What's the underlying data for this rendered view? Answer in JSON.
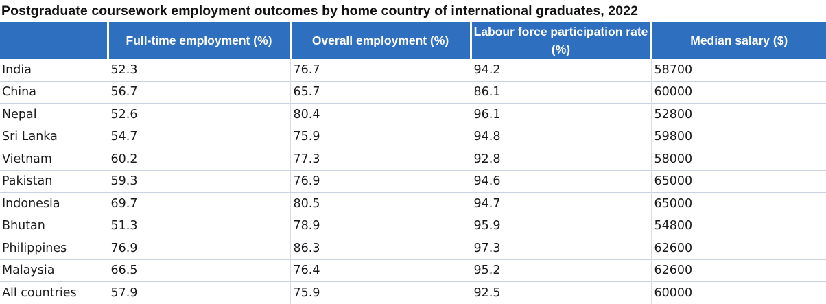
{
  "chart_data": {
    "type": "table",
    "title": "Postgraduate coursework employment outcomes by home country of international graduates, 2022",
    "columns": [
      "",
      "Full-time employment (%)",
      "Overall employment (%)",
      "Labour force participation rate (%)",
      "Median salary ($)"
    ],
    "rows": [
      {
        "country": "India",
        "full_time": "52.3",
        "overall": "76.7",
        "labour_force": "94.2",
        "salary": "58700"
      },
      {
        "country": "China",
        "full_time": "56.7",
        "overall": "65.7",
        "labour_force": "86.1",
        "salary": "60000"
      },
      {
        "country": "Nepal",
        "full_time": "52.6",
        "overall": "80.4",
        "labour_force": "96.1",
        "salary": "52800"
      },
      {
        "country": "Sri Lanka",
        "full_time": "54.7",
        "overall": "75.9",
        "labour_force": "94.8",
        "salary": "59800"
      },
      {
        "country": "Vietnam",
        "full_time": "60.2",
        "overall": "77.3",
        "labour_force": "92.8",
        "salary": "58000"
      },
      {
        "country": "Pakistan",
        "full_time": "59.3",
        "overall": "76.9",
        "labour_force": "94.6",
        "salary": "65000"
      },
      {
        "country": "Indonesia",
        "full_time": "69.7",
        "overall": "80.5",
        "labour_force": "94.7",
        "salary": "65000"
      },
      {
        "country": "Bhutan",
        "full_time": "51.3",
        "overall": "78.9",
        "labour_force": "95.9",
        "salary": "54800"
      },
      {
        "country": "Philippines",
        "full_time": "76.9",
        "overall": "86.3",
        "labour_force": "97.3",
        "salary": "62600"
      },
      {
        "country": "Malaysia",
        "full_time": "66.5",
        "overall": "76.4",
        "labour_force": "95.2",
        "salary": "62600"
      },
      {
        "country": "All countries",
        "full_time": "57.9",
        "overall": "75.9",
        "labour_force": "92.5",
        "salary": "60000"
      }
    ]
  },
  "colors": {
    "header_bg": "#2f6fbf",
    "header_text": "#ffffff"
  }
}
